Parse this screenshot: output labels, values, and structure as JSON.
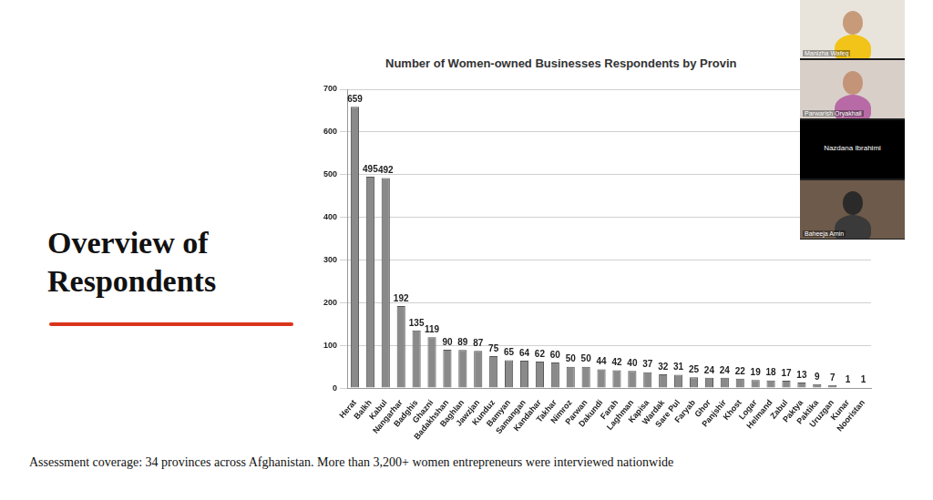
{
  "chart_data": {
    "type": "bar",
    "title": "Number of Women-owned Businesses Respondents by Provin",
    "categories": [
      "Herat",
      "Balkh",
      "Kabul",
      "Nangarhar",
      "Badghis",
      "Ghazni",
      "Badakhshan",
      "Baghlan",
      "Jawzjan",
      "Kunduz",
      "Bamyan",
      "Samangan",
      "Kandahar",
      "Takhar",
      "Nimroz",
      "Parwan",
      "Dakundi",
      "Farah",
      "Laghman",
      "Kapisa",
      "Wardak",
      "Sare Pul",
      "Faryab",
      "Ghor",
      "Panjshir",
      "Khost",
      "Logar",
      "Helmand",
      "Zabul",
      "Paktya",
      "Paktika",
      "Uruzgan",
      "Kunar",
      "Nooristan"
    ],
    "values": [
      659,
      495,
      492,
      192,
      135,
      119,
      90,
      89,
      87,
      75,
      65,
      64,
      62,
      60,
      50,
      50,
      44,
      42,
      40,
      37,
      32,
      31,
      25,
      24,
      24,
      22,
      19,
      18,
      17,
      13,
      9,
      7,
      1,
      1
    ],
    "color": "#8a8a8a",
    "ylim": [
      0,
      700
    ],
    "yticks": [
      0,
      100,
      200,
      300,
      400,
      500,
      600,
      700
    ],
    "grid": true,
    "data_labels": true
  },
  "slide": {
    "heading": "Overview of Respondents",
    "footer": "Assessment coverage: 34 provinces across Afghanistan. More than 3,200+ women entrepreneurs were interviewed nationwide"
  },
  "participants": [
    "Manizha Wafeq",
    "Parwarish Oryakhail",
    "Nazdana Ibrahimi",
    "Baheeja Amin"
  ]
}
